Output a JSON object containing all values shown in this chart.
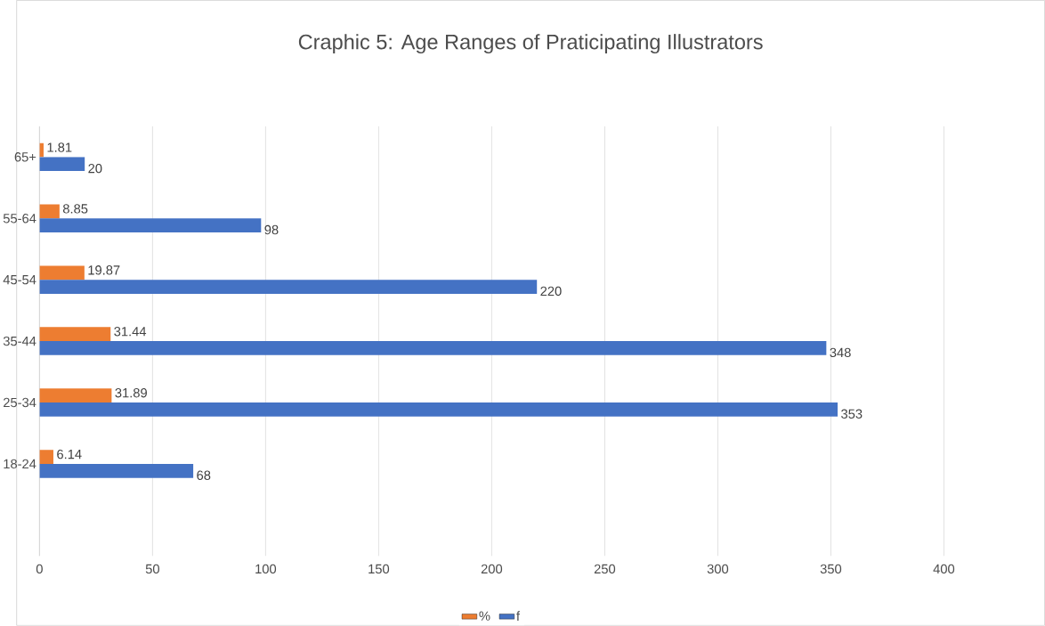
{
  "chart_data": {
    "type": "bar",
    "orientation": "horizontal",
    "title": "Craphic 5: Age Ranges of Praticipating Illustrators",
    "categories": [
      "65+",
      "55-64",
      "45-54",
      "35-44",
      "25-34",
      "18-24",
      null
    ],
    "series": [
      {
        "name": "%",
        "color": "#ed7d31",
        "values": [
          1.81,
          8.85,
          19.87,
          31.44,
          31.89,
          6.14,
          null
        ]
      },
      {
        "name": "f",
        "color": "#4472c4",
        "values": [
          20,
          98,
          220,
          348,
          353,
          68,
          null
        ]
      }
    ],
    "xlim": [
      0,
      400
    ],
    "xticks": [
      0,
      50,
      100,
      150,
      200,
      250,
      300,
      350,
      400
    ],
    "grid": "x",
    "legend": "bottom",
    "data_labels": true
  }
}
